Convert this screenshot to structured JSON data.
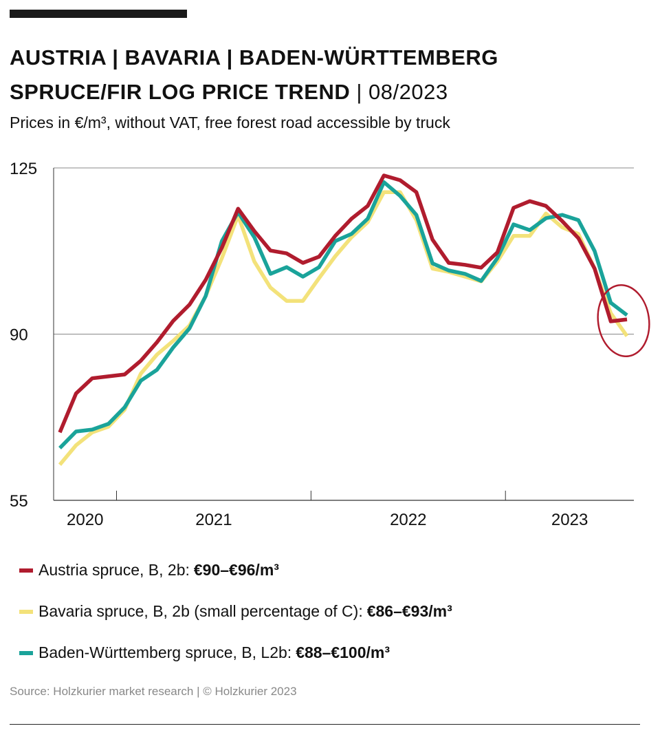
{
  "header": {
    "title_line1": "AUSTRIA | BAVARIA | BADEN-WÜRTTEMBERG",
    "title_line2_bold": "SPRUCE/FIR LOG PRICE TREND",
    "title_line2_rest": " | 08/2023",
    "subtitle": "Prices in €/m³, without VAT, free forest road accessible by truck"
  },
  "chart_data": {
    "type": "line",
    "ylim": [
      55,
      125
    ],
    "yticks": [
      "55",
      "90",
      "125"
    ],
    "grid": "horizontal at 90 and 125",
    "xtick_labels": [
      "2020",
      "2021",
      "2022",
      "2023"
    ],
    "x": [
      "2020-09",
      "2020-10",
      "2020-11",
      "2020-12",
      "2021-01",
      "2021-02",
      "2021-03",
      "2021-04",
      "2021-05",
      "2021-06",
      "2021-07",
      "2021-08",
      "2021-09",
      "2021-10",
      "2021-11",
      "2021-12",
      "2022-01",
      "2022-02",
      "2022-03",
      "2022-04",
      "2022-05",
      "2022-06",
      "2022-07",
      "2022-08",
      "2022-09",
      "2022-10",
      "2022-11",
      "2022-12",
      "2023-01",
      "2023-02",
      "2023-03",
      "2023-04",
      "2023-05",
      "2023-06",
      "2023-07",
      "2023-08"
    ],
    "series": [
      {
        "name": "Austria spruce, B, 2b",
        "range": "€90–€96/m³",
        "color": "#b01c2e",
        "values": [
          69.3,
          77.5,
          80.7,
          81.1,
          81.5,
          84.4,
          88.3,
          92.8,
          96.2,
          101.4,
          108.2,
          116.4,
          111.7,
          107.6,
          107,
          105,
          106.3,
          110.7,
          114.3,
          117,
          123.4,
          122.4,
          119.9,
          109.9,
          105,
          104.6,
          104,
          107.2,
          116.6,
          118,
          117,
          113.8,
          110.2,
          103.8,
          92.7,
          93.1
        ]
      },
      {
        "name": "Bavaria spruce, B, 2b (small percentage of C)",
        "range": "€86–€93/m³",
        "color": "#f3e27a",
        "values": [
          62.5,
          66.6,
          69.3,
          70.5,
          74.1,
          81.7,
          85.7,
          88.6,
          91.8,
          98,
          106,
          115,
          105.3,
          99.8,
          97,
          97,
          101.8,
          106.4,
          110.4,
          113.6,
          119.9,
          119.9,
          114,
          103.8,
          103.1,
          102.1,
          101.1,
          105.3,
          110.7,
          110.7,
          115.4,
          112.5,
          111.1,
          103.8,
          94.4,
          89.6
        ]
      },
      {
        "name": "Baden-Württemberg spruce, B, L2b",
        "range": "€88–€100/m³",
        "color": "#1aa39a",
        "values": [
          66,
          69.5,
          69.9,
          71.1,
          74.6,
          80.2,
          82.5,
          87.2,
          91.2,
          98,
          109.6,
          115.7,
          110.4,
          102.7,
          104.1,
          102.1,
          104.1,
          109.6,
          111.1,
          114.3,
          122,
          119.1,
          115.1,
          104.9,
          103.4,
          102.7,
          101.2,
          106,
          113.1,
          111.9,
          114.4,
          115.1,
          114,
          107.5,
          96.6,
          94
        ]
      }
    ],
    "annotation": "hand-drawn red circle around latest values",
    "legend_placement": "bottom"
  },
  "footer": {
    "source": "Source: Holzkurier market research | © Holzkurier 2023"
  }
}
